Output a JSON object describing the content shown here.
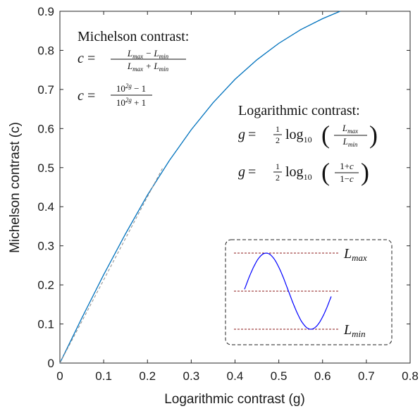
{
  "chart_data": {
    "type": "line",
    "xlabel": "Logarithmic contrast (g)",
    "ylabel": "Michelson contrast (c)",
    "xlim": [
      0,
      0.8
    ],
    "ylim": [
      0,
      0.9
    ],
    "xticks": [
      "0",
      "0.1",
      "0.2",
      "0.3",
      "0.4",
      "0.5",
      "0.6",
      "0.7",
      "0.8"
    ],
    "yticks": [
      "0",
      "0.1",
      "0.2",
      "0.3",
      "0.4",
      "0.5",
      "0.6",
      "0.7",
      "0.8",
      "0.9"
    ],
    "grid": false,
    "series": [
      {
        "role": "curve",
        "style": "solid",
        "color": "#0072BD",
        "x": [
          0,
          0.05,
          0.1,
          0.15,
          0.2,
          0.25,
          0.3,
          0.35,
          0.4,
          0.45,
          0.5,
          0.55,
          0.6,
          0.64
        ],
        "y": [
          0,
          0.115,
          0.226,
          0.331,
          0.43,
          0.518,
          0.597,
          0.666,
          0.726,
          0.776,
          0.818,
          0.853,
          0.881,
          0.9
        ]
      },
      {
        "role": "tangent",
        "style": "dashed",
        "color": "#8c8c8c",
        "x": [
          0,
          0.235
        ],
        "y": [
          0,
          0.5
        ]
      }
    ],
    "annotations": {
      "michelson": {
        "title": "Michelson contrast:",
        "lhs": "c =",
        "frac1_num": "L_max − L_min",
        "frac1_den": "L_max + L_min",
        "frac2_num": "10^2g − 1",
        "frac2_den": "10^2g + 1"
      },
      "logarithmic": {
        "title": "Logarithmic contrast:",
        "lhs": "g =",
        "half": "1/2",
        "log": "log",
        "log_sub": "10",
        "frac1_num": "L_max",
        "frac1_den": "L_min",
        "frac2_num": "1+c",
        "frac2_den": "1−c"
      },
      "inset": {
        "label_max": "L_max",
        "label_min": "L_min",
        "wave_color": "#0000ff",
        "level_color": "#8b1a1a"
      }
    }
  }
}
